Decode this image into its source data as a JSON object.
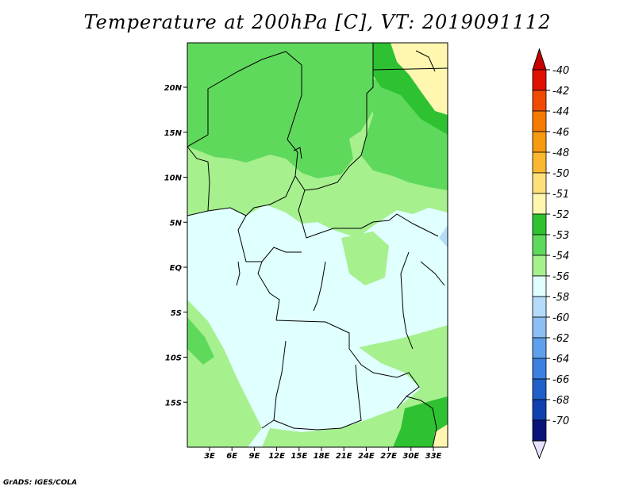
{
  "title": "Temperature at 200hPa [C], VT: 2019091112",
  "credit": "GrADS: IGES/COLA",
  "lat_labels": [
    "20N",
    "15N",
    "10N",
    "5N",
    "EQ",
    "5S",
    "10S",
    "15S"
  ],
  "lon_labels": [
    "3E",
    "6E",
    "9E",
    "12E",
    "15E",
    "18E",
    "21E",
    "24E",
    "27E",
    "30E",
    "33E"
  ],
  "colorbar": {
    "labels": [
      "-40",
      "-42",
      "-44",
      "-46",
      "-48",
      "-50",
      "-51",
      "-52",
      "-53",
      "-54",
      "-56",
      "-58",
      "-60",
      "-62",
      "-64",
      "-66",
      "-68",
      "-70"
    ],
    "colors": [
      "#e01000",
      "#f04a00",
      "#f57a00",
      "#f79a10",
      "#fab830",
      "#fde07a",
      "#fff7b0",
      "#2ec233",
      "#5fd95c",
      "#a6f08e",
      "#e0ffff",
      "#b4dcf8",
      "#8cc0f4",
      "#5ea0ec",
      "#3c80e0",
      "#2060c8",
      "#1040b0",
      "#0a1478"
    ],
    "top_cap_color": "#c80000",
    "bottom_cap_color": "#e8e0ff"
  }
}
